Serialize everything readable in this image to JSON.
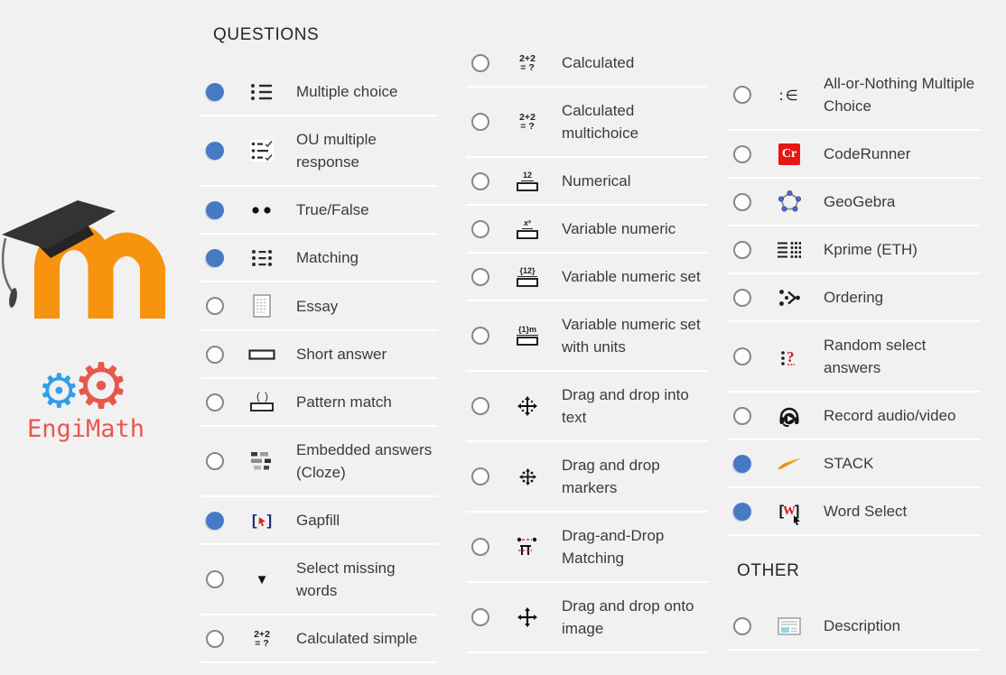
{
  "page": {
    "background_color": "#f1f1f2",
    "separator_color": "#ffffff"
  },
  "branding": {
    "moodle_logo": {
      "m_color": "#f8930f",
      "cap_color": "#333333"
    },
    "engimath_logo": {
      "text": "EngiMath",
      "text_color": "#e8574c",
      "blue_gear_color": "#2f9ee8",
      "red_gear_color": "#e8574c"
    }
  },
  "headers": {
    "questions": "QUESTIONS",
    "other": "OTHER"
  },
  "radio": {
    "selected_color": "#4779c4",
    "unselected_border_color": "#86868f"
  },
  "columns": {
    "col1": [
      {
        "label": "Multiple choice",
        "icon": "multiple-choice",
        "selected": true
      },
      {
        "label": "OU multiple response",
        "icon": "ou-multiple-response",
        "selected": true
      },
      {
        "label": "True/False",
        "icon": "true-false",
        "selected": true
      },
      {
        "label": "Matching",
        "icon": "matching",
        "selected": true
      },
      {
        "label": "Essay",
        "icon": "essay",
        "selected": false
      },
      {
        "label": "Short answer",
        "icon": "short-answer",
        "selected": false
      },
      {
        "label": "Pattern match",
        "icon": "pattern-match",
        "selected": false
      },
      {
        "label": "Embedded answers (Cloze)",
        "icon": "cloze",
        "selected": false
      },
      {
        "label": "Gapfill",
        "icon": "gapfill",
        "selected": true
      },
      {
        "label": "Select missing words",
        "icon": "select-missing-words",
        "selected": false
      },
      {
        "label": "Calculated simple",
        "icon": "calculated-simple",
        "selected": false
      }
    ],
    "col2": [
      {
        "label": "Calculated",
        "icon": "calculated",
        "selected": false
      },
      {
        "label": "Calculated multichoice",
        "icon": "calculated-multichoice",
        "selected": false
      },
      {
        "label": "Numerical",
        "icon": "numerical",
        "selected": false
      },
      {
        "label": "Variable numeric",
        "icon": "variable-numeric",
        "selected": false
      },
      {
        "label": "Variable numeric set",
        "icon": "variable-numeric-set",
        "selected": false
      },
      {
        "label": "Variable numeric set with units",
        "icon": "variable-numeric-set-units",
        "selected": false
      },
      {
        "label": "Drag and drop into text",
        "icon": "dnd-text",
        "selected": false
      },
      {
        "label": "Drag and drop markers",
        "icon": "dnd-markers",
        "selected": false
      },
      {
        "label": "Drag-and-Drop Matching",
        "icon": "dnd-matching",
        "selected": false
      },
      {
        "label": "Drag and drop onto image",
        "icon": "dnd-image",
        "selected": false
      }
    ],
    "col3": [
      {
        "label": "All-or-Nothing Multiple Choice",
        "icon": "aon-multiple-choice",
        "selected": false
      },
      {
        "label": "CodeRunner",
        "icon": "coderunner",
        "selected": false
      },
      {
        "label": "GeoGebra",
        "icon": "geogebra",
        "selected": false
      },
      {
        "label": "Kprime (ETH)",
        "icon": "kprime",
        "selected": false
      },
      {
        "label": "Ordering",
        "icon": "ordering",
        "selected": false
      },
      {
        "label": "Random select answers",
        "icon": "random-select",
        "selected": false
      },
      {
        "label": "Record audio/video",
        "icon": "record-av",
        "selected": false
      },
      {
        "label": "STACK",
        "icon": "stack",
        "selected": true
      },
      {
        "label": "Word Select",
        "icon": "word-select",
        "selected": true
      }
    ],
    "other": [
      {
        "label": "Description",
        "icon": "description",
        "selected": false
      }
    ]
  }
}
